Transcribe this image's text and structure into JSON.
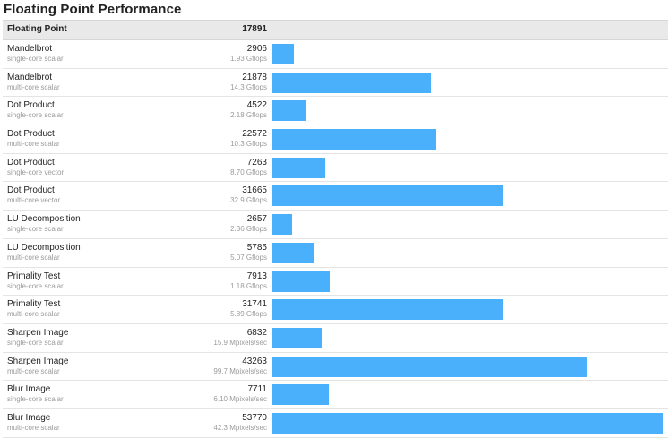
{
  "title": "Floating Point Performance",
  "header": {
    "label": "Floating Point",
    "score": "17891"
  },
  "colors": {
    "bar": "#4ab0fb",
    "header_bg": "#e9e9e9"
  },
  "chart_data": {
    "type": "bar",
    "orientation": "horizontal",
    "title": "Floating Point Performance",
    "summary_label": "Floating Point",
    "summary_score": 17891,
    "max_value": 53770,
    "rows": [
      {
        "name": "Mandelbrot",
        "sub": "single-core scalar",
        "score": 2906,
        "rate": "1.93 Gflops"
      },
      {
        "name": "Mandelbrot",
        "sub": "multi-core scalar",
        "score": 21878,
        "rate": "14.3 Gflops"
      },
      {
        "name": "Dot Product",
        "sub": "single-core scalar",
        "score": 4522,
        "rate": "2.18 Gflops"
      },
      {
        "name": "Dot Product",
        "sub": "multi-core scalar",
        "score": 22572,
        "rate": "10.3 Gflops"
      },
      {
        "name": "Dot Product",
        "sub": "single-core vector",
        "score": 7263,
        "rate": "8.70 Gflops"
      },
      {
        "name": "Dot Product",
        "sub": "multi-core vector",
        "score": 31665,
        "rate": "32.9 Gflops"
      },
      {
        "name": "LU Decomposition",
        "sub": "single-core scalar",
        "score": 2657,
        "rate": "2.36 Gflops"
      },
      {
        "name": "LU Decomposition",
        "sub": "multi-core scalar",
        "score": 5785,
        "rate": "5.07 Gflops"
      },
      {
        "name": "Primality Test",
        "sub": "single-core scalar",
        "score": 7913,
        "rate": "1.18 Gflops"
      },
      {
        "name": "Primality Test",
        "sub": "multi-core scalar",
        "score": 31741,
        "rate": "5.89 Gflops"
      },
      {
        "name": "Sharpen Image",
        "sub": "single-core scalar",
        "score": 6832,
        "rate": "15.9 Mpixels/sec"
      },
      {
        "name": "Sharpen Image",
        "sub": "multi-core scalar",
        "score": 43263,
        "rate": "99.7 Mpixels/sec"
      },
      {
        "name": "Blur Image",
        "sub": "single-core scalar",
        "score": 7711,
        "rate": "6.10 Mpixels/sec"
      },
      {
        "name": "Blur Image",
        "sub": "multi-core scalar",
        "score": 53770,
        "rate": "42.3 Mpixels/sec"
      }
    ]
  }
}
